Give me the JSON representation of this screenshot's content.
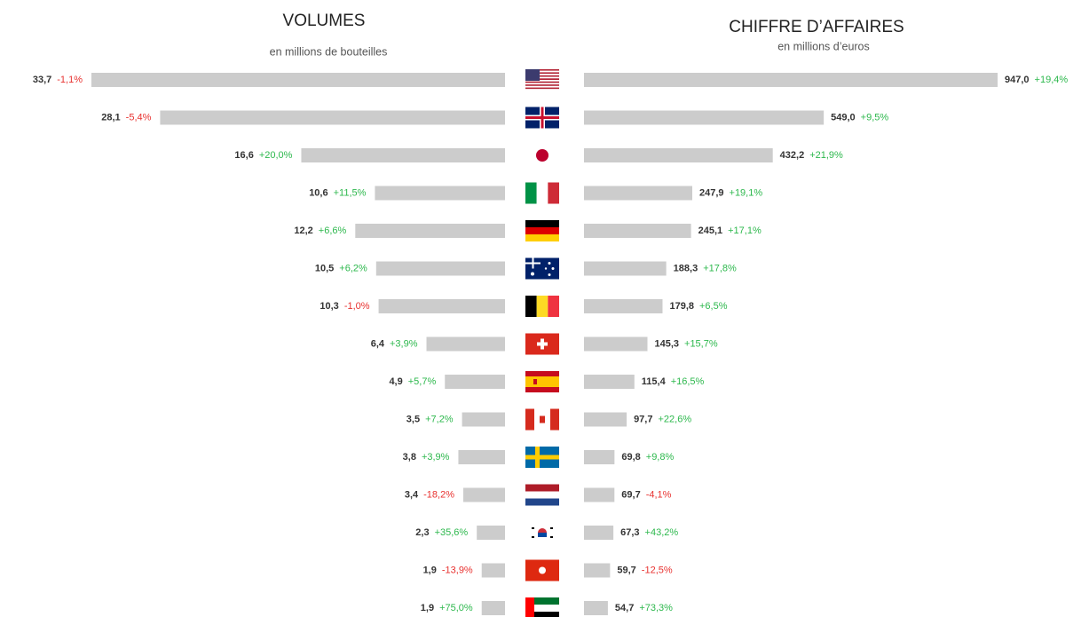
{
  "chart_data": [
    {
      "type": "bar",
      "orientation": "horizontal",
      "direction": "left",
      "title": "VOLUMES",
      "subtitle": "en millions de bouteilles",
      "color": "#cccccc",
      "positive_color": "#2db84d",
      "negative_color": "#e8312f",
      "values": [
        33.7,
        28.1,
        16.6,
        10.6,
        12.2,
        10.5,
        10.3,
        6.4,
        4.9,
        3.5,
        3.8,
        3.4,
        2.3,
        1.9,
        1.9
      ],
      "value_labels": [
        "33,7",
        "28,1",
        "16,6",
        "10,6",
        "12,2",
        "10,5",
        "10,3",
        "6,4",
        "4,9",
        "3,5",
        "3,8",
        "3,4",
        "2,3",
        "1,9",
        "1,9"
      ],
      "changes": [
        -1.1,
        -5.4,
        20.0,
        11.5,
        6.6,
        6.2,
        -1.0,
        3.9,
        5.7,
        7.2,
        3.9,
        -18.2,
        35.6,
        -13.9,
        75.0
      ],
      "change_labels": [
        "-1,1%",
        "-5,4%",
        "+20,0%",
        "+11,5%",
        "+6,6%",
        "+6,2%",
        "-1,0%",
        "+3,9%",
        "+5,7%",
        "+7,2%",
        "+3,9%",
        "-18,2%",
        "+35,6%",
        "-13,9%",
        "+75,0%"
      ]
    },
    {
      "type": "bar",
      "orientation": "horizontal",
      "direction": "right",
      "title": "CHIFFRE D’AFFAIRES",
      "subtitle": "en millions d’euros",
      "color": "#cccccc",
      "positive_color": "#2db84d",
      "negative_color": "#e8312f",
      "values": [
        947.0,
        549.0,
        432.2,
        247.9,
        245.1,
        188.3,
        179.8,
        145.3,
        115.4,
        97.7,
        69.8,
        69.7,
        67.3,
        59.7,
        54.7
      ],
      "value_labels": [
        "947,0",
        "549,0",
        "432,2",
        "247,9",
        "245,1",
        "188,3",
        "179,8",
        "145,3",
        "115,4",
        "97,7",
        "69,8",
        "69,7",
        "67,3",
        "59,7",
        "54,7"
      ],
      "changes": [
        19.4,
        9.5,
        21.9,
        19.1,
        17.1,
        17.8,
        6.5,
        15.7,
        16.5,
        22.6,
        9.8,
        -4.1,
        43.2,
        -12.5,
        73.3
      ],
      "change_labels": [
        "+19,4%",
        "+9,5%",
        "+21,9%",
        "+19,1%",
        "+17,1%",
        "+17,8%",
        "+6,5%",
        "+15,7%",
        "+16,5%",
        "+22,6%",
        "+9,8%",
        "-4,1%",
        "+43,2%",
        "-12,5%",
        "+73,3%"
      ]
    }
  ]
}
